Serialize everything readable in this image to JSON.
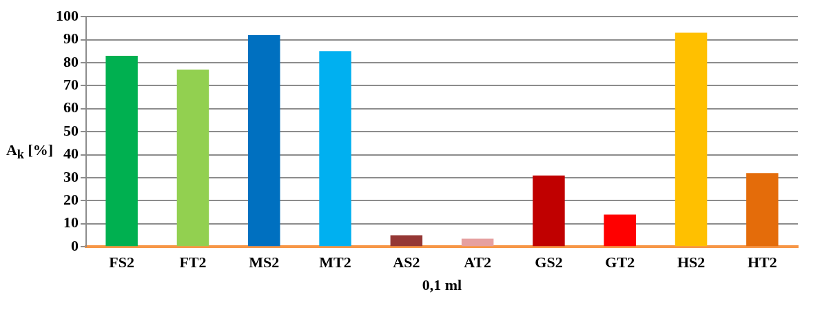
{
  "chart_data": {
    "type": "bar",
    "xlabel": "0,1 ml",
    "ylabel": "A$_{k}$ [%]",
    "categories": [
      "FS2",
      "FT2",
      "MS2",
      "MT2",
      "AS2",
      "AT2",
      "GS2",
      "GT2",
      "HS2",
      "HT2"
    ],
    "values": [
      83,
      77,
      92,
      85,
      5,
      3.5,
      31,
      14,
      93,
      32
    ],
    "colors": [
      "#00b050",
      "#92d050",
      "#0070c0",
      "#00b0f0",
      "#953735",
      "#e6a0a0",
      "#c00000",
      "#ff0000",
      "#ffc000",
      "#e46c0a"
    ],
    "ylim": [
      0,
      100
    ],
    "yticks": [
      0,
      10,
      20,
      30,
      40,
      50,
      60,
      70,
      80,
      90,
      100
    ],
    "grid": "y"
  }
}
